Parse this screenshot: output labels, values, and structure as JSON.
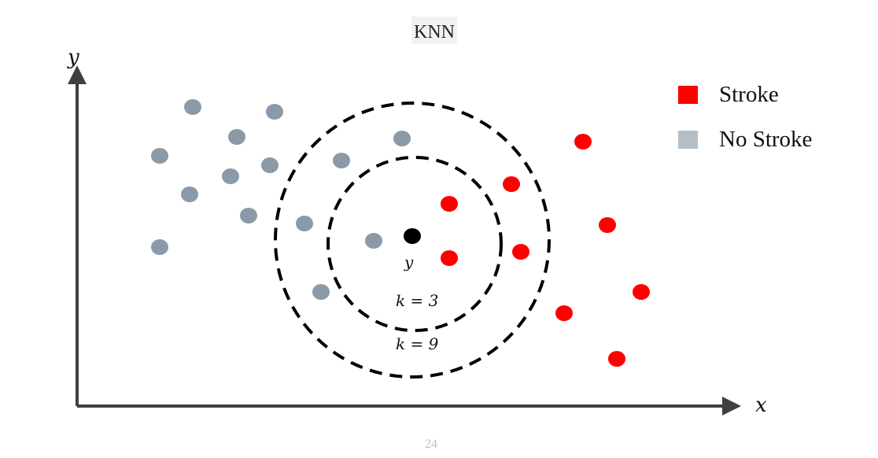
{
  "title": "KNN",
  "page_number": "24",
  "axes": {
    "x_label": "x",
    "y_label": "y"
  },
  "query_point_label": "y",
  "circles": [
    {
      "label": "k = 3"
    },
    {
      "label": "k = 9"
    }
  ],
  "legend": [
    {
      "label": "Stroke",
      "color": "#ff0000"
    },
    {
      "label": "No Stroke",
      "color": "#b4bec8"
    }
  ],
  "colors": {
    "stroke": "#ff0000",
    "no_stroke": "#8b9aa8",
    "query": "#000000",
    "axis": "#404040"
  }
}
